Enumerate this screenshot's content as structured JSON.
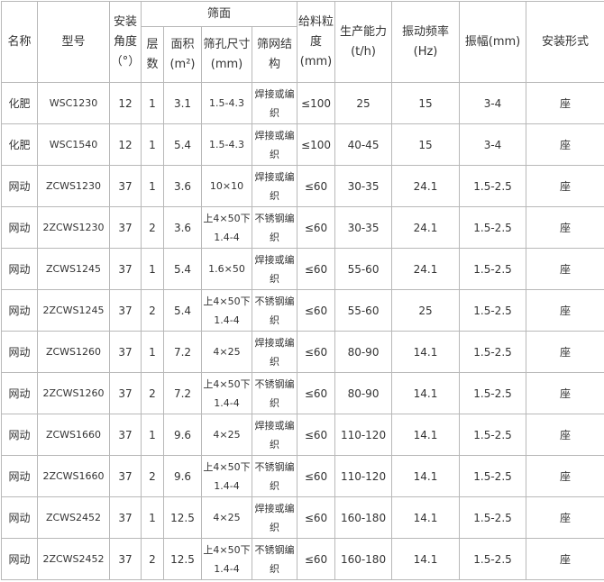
{
  "headers": {
    "name": "名称",
    "model": "型号",
    "angle": "安装角度（°）",
    "screen": "筛面",
    "layers": "层数",
    "area": "面积(m²)",
    "hole": "筛孔尺寸(mm)",
    "mesh": "筛网结构",
    "feed": "给料粒度(mm)",
    "capacity": "生产能力(t/h)",
    "freq": "振动频率(Hz)",
    "amp": "振幅(mm)",
    "mount": "安装形式"
  },
  "rows": [
    {
      "name": "化肥",
      "model": "WSC1230",
      "angle": "12",
      "layers": "1",
      "area": "3.1",
      "hole": "1.5-4.3",
      "mesh": "焊接或编　织",
      "feed": "≤100",
      "capacity": "25",
      "freq": "15",
      "amp": "3-4",
      "mount": "座"
    },
    {
      "name": "化肥",
      "model": "WSC1540",
      "angle": "12",
      "layers": "1",
      "area": "5.4",
      "hole": "1.5-4.3",
      "mesh": "焊接或编　织",
      "feed": "≤100",
      "capacity": "40-45",
      "freq": "15",
      "amp": "3-4",
      "mount": "座"
    },
    {
      "name": "网动",
      "model": "ZCWS1230",
      "angle": "37",
      "layers": "1",
      "area": "3.6",
      "hole": "10×10",
      "mesh": "焊接或编　织",
      "feed": "≤60",
      "capacity": "30-35",
      "freq": "24.1",
      "amp": "1.5-2.5",
      "mount": "座"
    },
    {
      "name": "网动",
      "model": "2ZCWS1230",
      "angle": "37",
      "layers": "2",
      "area": "3.6",
      "hole": "上4×50下1.4-4",
      "mesh": "不锈钢编　织",
      "feed": "≤60",
      "capacity": "30-35",
      "freq": "24.1",
      "amp": "1.5-2.5",
      "mount": "座"
    },
    {
      "name": "网动",
      "model": "ZCWS1245",
      "angle": "37",
      "layers": "1",
      "area": "5.4",
      "hole": "1.6×50",
      "mesh": "焊接或编　织",
      "feed": "≤60",
      "capacity": "55-60",
      "freq": "24.1",
      "amp": "1.5-2.5",
      "mount": "座"
    },
    {
      "name": "网动",
      "model": "2ZCWS1245",
      "angle": "37",
      "layers": "2",
      "area": "5.4",
      "hole": "上4×50下1.4-4",
      "mesh": "不锈钢编　织",
      "feed": "≤60",
      "capacity": "55-60",
      "freq": "25",
      "amp": "1.5-2.5",
      "mount": "座"
    },
    {
      "name": "网动",
      "model": "ZCWS1260",
      "angle": "37",
      "layers": "1",
      "area": "7.2",
      "hole": "4×25",
      "mesh": "焊接或编　织",
      "feed": "≤60",
      "capacity": "80-90",
      "freq": "14.1",
      "amp": "1.5-2.5",
      "mount": "座"
    },
    {
      "name": "网动",
      "model": "2ZCWS1260",
      "angle": "37",
      "layers": "2",
      "area": "7.2",
      "hole": "上4×50下1.4-4",
      "mesh": "不锈钢编　织",
      "feed": "≤60",
      "capacity": "80-90",
      "freq": "14.1",
      "amp": "1.5-2.5",
      "mount": "座"
    },
    {
      "name": "网动",
      "model": "ZCWS1660",
      "angle": "37",
      "layers": "1",
      "area": "9.6",
      "hole": "4×25",
      "mesh": "焊接或编　织",
      "feed": "≤60",
      "capacity": "110-120",
      "freq": "14.1",
      "amp": "1.5-2.5",
      "mount": "座"
    },
    {
      "name": "网动",
      "model": "2ZCWS1660",
      "angle": "37",
      "layers": "2",
      "area": "9.6",
      "hole": "上4×50下1.4-4",
      "mesh": "不锈钢编　织",
      "feed": "≤60",
      "capacity": "110-120",
      "freq": "14.1",
      "amp": "1.5-2.5",
      "mount": "座"
    },
    {
      "name": "网动",
      "model": "ZCWS2452",
      "angle": "37",
      "layers": "1",
      "area": "12.5",
      "hole": "4×25",
      "mesh": "焊接或编　织",
      "feed": "≤60",
      "capacity": "160-180",
      "freq": "14.1",
      "amp": "1.5-2.5",
      "mount": "座"
    },
    {
      "name": "网动",
      "model": "2ZCWS2452",
      "angle": "37",
      "layers": "2",
      "area": "12.5",
      "hole": "上4×50下1.4-4",
      "mesh": "不锈钢编　织",
      "feed": "≤60",
      "capacity": "160-180",
      "freq": "14.1",
      "amp": "1.5-2.5",
      "mount": "座"
    }
  ]
}
